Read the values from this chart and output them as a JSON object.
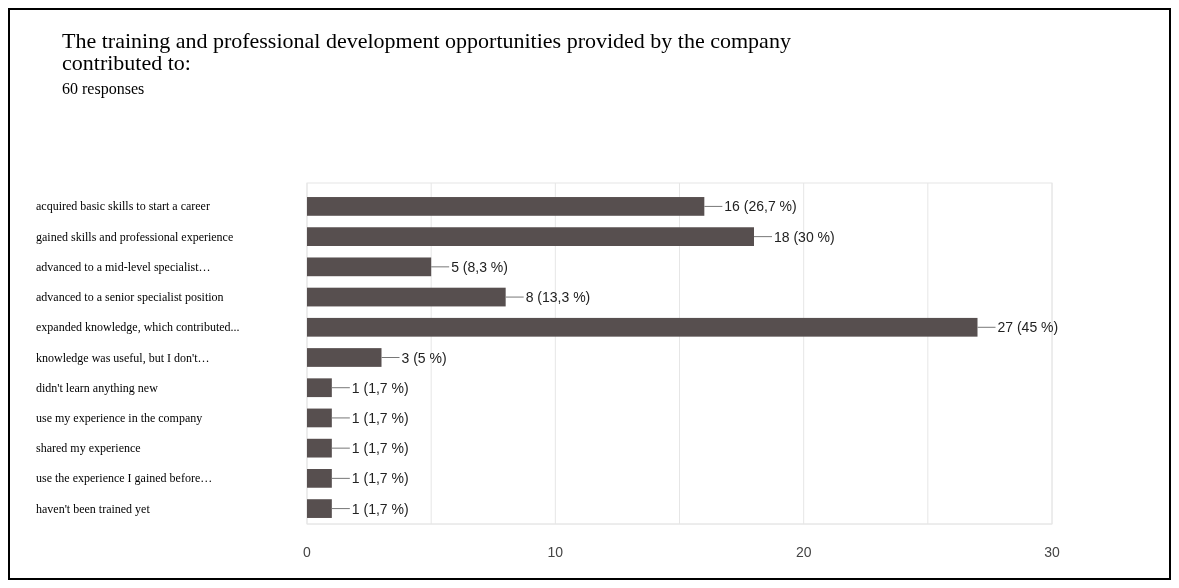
{
  "chart_data": {
    "type": "bar",
    "orientation": "horizontal",
    "title": "The training and professional development opportunities provided by the company contributed to:",
    "subtitle": "60 responses",
    "categories": [
      "acquired basic skills to start a career",
      "gained skills and professional experience",
      "advanced to a mid-level specialist…",
      "advanced to a senior specialist position",
      "expanded knowledge, which contributed...",
      "knowledge was useful, but I don't…",
      "didn't learn anything new",
      "use my experience in the company",
      "shared my experience",
      "use the experience I gained before…",
      "haven't been trained yet"
    ],
    "values": [
      16,
      18,
      5,
      8,
      27,
      3,
      1,
      1,
      1,
      1,
      1
    ],
    "value_labels": [
      "16 (26,7 %)",
      "18 (30 %)",
      "5 (8,3 %)",
      "8 (13,3 %)",
      "27 (45 %)",
      "3 (5 %)",
      "1 (1,7 %)",
      "1 (1,7 %)",
      "1 (1,7 %)",
      "1 (1,7 %)",
      "1 (1,7 %)"
    ],
    "color": "#574f4f",
    "xlim": [
      0,
      30
    ],
    "xticks": [
      0,
      {
        "value": 5,
        "label": null
      },
      10,
      {
        "value": 15,
        "label": null
      },
      20,
      {
        "value": 25,
        "label": null
      },
      30
    ],
    "grid": "x"
  }
}
